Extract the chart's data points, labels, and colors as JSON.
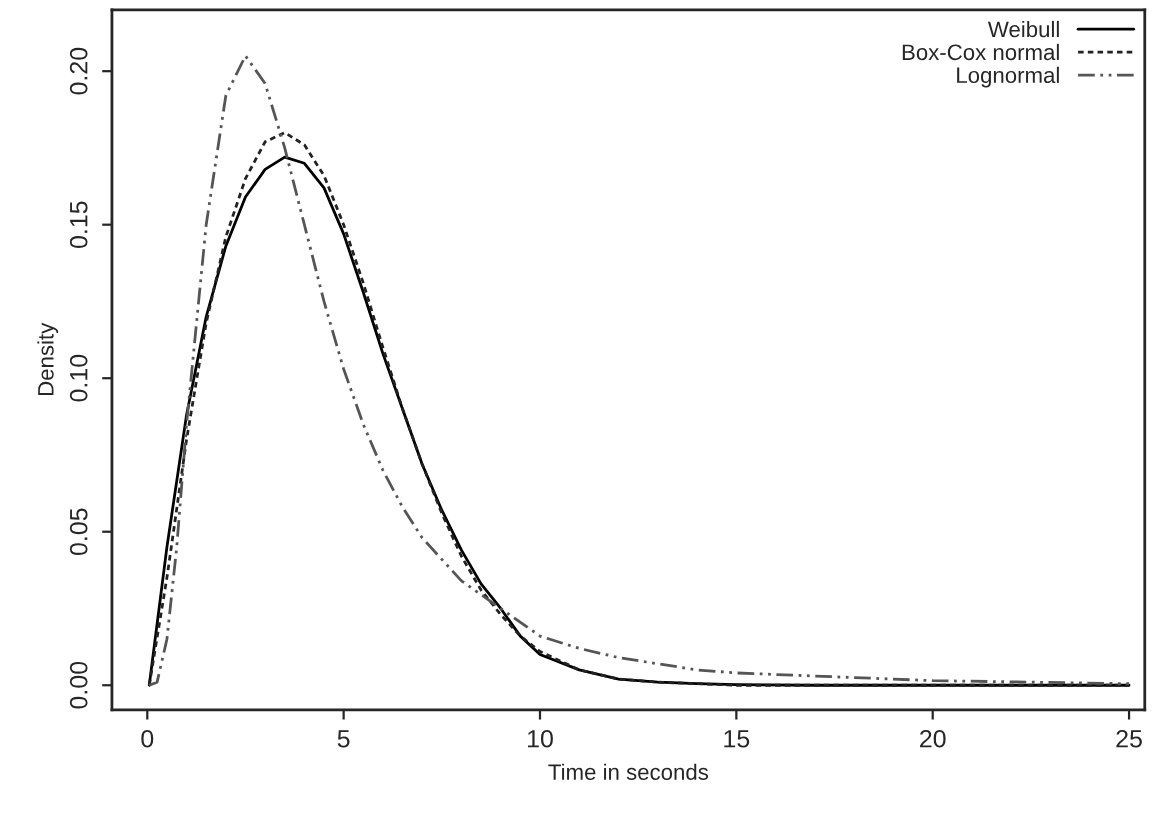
{
  "chart_data": {
    "type": "line",
    "xlabel": "Time in seconds",
    "ylabel": "Density",
    "xlim": [
      -0.9,
      25.4
    ],
    "ylim": [
      -0.008,
      0.22
    ],
    "xticks": [
      0,
      5,
      10,
      15,
      20,
      25
    ],
    "yticks": [
      {
        "value": 0,
        "label": "0.00"
      },
      {
        "value": 0.05,
        "label": "0.05"
      },
      {
        "value": 0.1,
        "label": "0.10"
      },
      {
        "value": 0.15,
        "label": "0.15"
      },
      {
        "value": 0.2,
        "label": "0.20"
      }
    ],
    "legend": "top right",
    "grid": false,
    "series": [
      {
        "name": "Weibull",
        "color": "#000000",
        "line_style": "solid",
        "x": [
          0.05,
          0.5,
          1,
          1.5,
          2,
          2.5,
          3,
          3.5,
          4,
          4.5,
          5,
          5.5,
          6,
          6.5,
          7,
          7.5,
          8,
          8.5,
          9,
          9.5,
          10,
          11,
          12,
          13,
          14,
          15,
          17,
          20,
          25
        ],
        "values": [
          0,
          0.045,
          0.088,
          0.12,
          0.143,
          0.159,
          0.168,
          0.172,
          0.17,
          0.162,
          0.147,
          0.128,
          0.108,
          0.09,
          0.072,
          0.057,
          0.044,
          0.033,
          0.025,
          0.016,
          0.01,
          0.005,
          0.002,
          0.001,
          0.0005,
          0.0002,
          0,
          0,
          0
        ]
      },
      {
        "name": "Box-Cox normal",
        "color": "#222222",
        "line_style": "dotted",
        "x": [
          0.05,
          0.5,
          1,
          1.5,
          2,
          2.5,
          3,
          3.5,
          4,
          4.5,
          5,
          5.5,
          6,
          6.5,
          7,
          7.5,
          8,
          8.5,
          9,
          9.5,
          10,
          11,
          12,
          13,
          14,
          15,
          17,
          20,
          25
        ],
        "values": [
          0,
          0.035,
          0.08,
          0.118,
          0.146,
          0.165,
          0.177,
          0.18,
          0.176,
          0.166,
          0.15,
          0.131,
          0.11,
          0.09,
          0.072,
          0.056,
          0.042,
          0.031,
          0.023,
          0.016,
          0.011,
          0.005,
          0.002,
          0.001,
          0.0005,
          0,
          0,
          0,
          0
        ]
      },
      {
        "name": "Lognormal",
        "color": "#555555",
        "line_style": "dashdot",
        "x": [
          0.05,
          0.25,
          0.5,
          0.75,
          1,
          1.5,
          2,
          2.5,
          3,
          3.5,
          4,
          4.5,
          5,
          5.5,
          6,
          6.5,
          7,
          8,
          9,
          10,
          11,
          12,
          13,
          14,
          15,
          17,
          20,
          25
        ],
        "values": [
          0,
          0.001,
          0.015,
          0.045,
          0.085,
          0.15,
          0.192,
          0.205,
          0.196,
          0.175,
          0.15,
          0.125,
          0.103,
          0.085,
          0.07,
          0.058,
          0.048,
          0.034,
          0.025,
          0.016,
          0.012,
          0.009,
          0.007,
          0.005,
          0.004,
          0.003,
          0.0015,
          0.0005
        ]
      }
    ]
  }
}
